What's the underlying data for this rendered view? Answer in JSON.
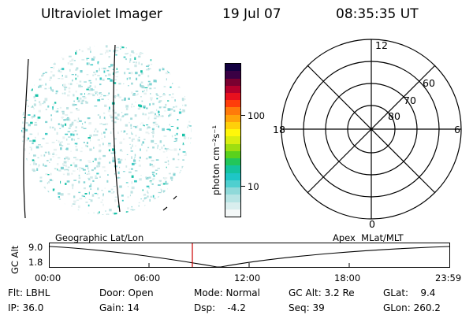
{
  "header": {
    "title": "Ultraviolet Imager",
    "date": "19 Jul 07",
    "time": "08:35:35 UT"
  },
  "colorbar": {
    "unit_label": "photon cm⁻²s⁻¹",
    "tick_100": "100",
    "tick_10": "10",
    "colors": [
      "#f4f8f8",
      "#d9eeee",
      "#b7e4e4",
      "#8fd9d9",
      "#4fcfcf",
      "#1ec6c6",
      "#14c39e",
      "#22c65a",
      "#5ad11c",
      "#9fde10",
      "#d9ee10",
      "#fff70a",
      "#ffd00a",
      "#ffa40a",
      "#ff7a0a",
      "#ff3d0a",
      "#e8101e",
      "#b4002c",
      "#7a0030",
      "#3a0044",
      "#120040"
    ]
  },
  "polar_grid": {
    "mlt_labels": {
      "top": "12",
      "left": "18",
      "right": "6",
      "bottom": "0"
    },
    "mlat_labels": [
      "60",
      "70",
      "80"
    ]
  },
  "timeline": {
    "left_label": "Geographic Lat/Lon",
    "right_label": "Apex  MLat/MLT",
    "axis_title": "GC Alt",
    "y_ticks": [
      "9.0",
      "1.8"
    ],
    "x_ticks": [
      "00:00",
      "06:00",
      "12:00",
      "18:00",
      "23:59"
    ],
    "marker_color": "#cc0000"
  },
  "status": {
    "flt": "Flt: LBHL",
    "door": "Door: Open",
    "mode": "Mode: Normal",
    "gc_alt": "GC Alt: 3.2 Re",
    "glat": "GLat:    9.4",
    "ip": "IP: 36.0",
    "gain": "Gain: 14",
    "dsp": "Dsp:    -4.2",
    "seq": "Seq: 39",
    "glon": "GLon: 260.2"
  }
}
